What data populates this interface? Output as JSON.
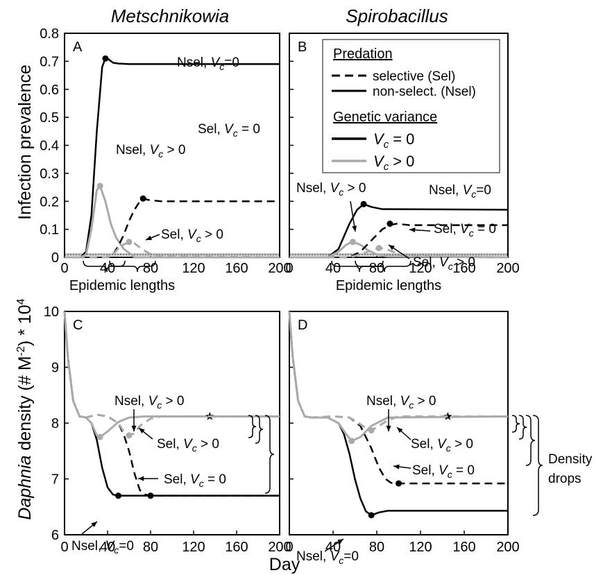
{
  "columns": {
    "left": "Metschnikowia",
    "right": "Spirobacillus"
  },
  "ylabel_top": "Infection prevalence",
  "ylabel_bottom": {
    "italic": "Daphnia",
    "rest": " density (# M",
    "sup1": "-2",
    "mid": ") * 10",
    "sup2": "4"
  },
  "xlabel": "Day",
  "epidemic_label": "Epidemic lengths",
  "density_label": [
    "Density",
    "drops"
  ],
  "legend": {
    "predation_title": "Predation",
    "sel": "selective (Sel)",
    "nsel": "non-select. (Nsel)",
    "variance_title": "Genetic variance",
    "vc0": "= 0",
    "vcpos": "> 0",
    "vc_symbol": "V",
    "vc_sub": "c"
  },
  "colors": {
    "black": "#000000",
    "gray": "#aaaaaa",
    "threshold": "#555555"
  },
  "chart_data": [
    {
      "panel": "A",
      "type": "line",
      "xlim": [
        0,
        200
      ],
      "ylim": [
        0,
        0.8
      ],
      "xticks": [
        0,
        40,
        80,
        120,
        160,
        200
      ],
      "yticks": [
        "0",
        "0.1",
        "0.2",
        "0.3",
        "0.4",
        "0.5",
        "0.6",
        "0.7",
        "0.8"
      ],
      "threshold": 0.01,
      "series": [
        {
          "name": "Nsel, Vc=0",
          "style": "solid",
          "color": "black",
          "x": [
            0,
            15,
            20,
            25,
            30,
            35,
            38,
            40,
            45,
            50,
            60,
            200
          ],
          "y": [
            0,
            0,
            0.02,
            0.15,
            0.45,
            0.68,
            0.71,
            0.71,
            0.695,
            0.692,
            0.69,
            0.69
          ],
          "marker": [
            38,
            0.71
          ]
        },
        {
          "name": "Nsel, Vc > 0",
          "style": "solid",
          "color": "gray",
          "x": [
            0,
            15,
            20,
            25,
            30,
            33,
            38,
            43,
            48,
            55,
            62,
            65,
            200
          ],
          "y": [
            0,
            0,
            0.01,
            0.1,
            0.24,
            0.255,
            0.2,
            0.12,
            0.07,
            0.03,
            0.01,
            0,
            0
          ],
          "marker": [
            33,
            0.255
          ]
        },
        {
          "name": "Sel, Vc = 0",
          "style": "dashed",
          "color": "black",
          "x": [
            0,
            40,
            45,
            50,
            55,
            60,
            65,
            70,
            73,
            78,
            90,
            200
          ],
          "y": [
            0,
            0,
            0.01,
            0.04,
            0.08,
            0.13,
            0.17,
            0.2,
            0.21,
            0.205,
            0.2,
            0.2
          ],
          "marker": [
            73,
            0.21
          ]
        },
        {
          "name": "Sel, Vc > 0",
          "style": "dashed",
          "color": "gray",
          "x": [
            0,
            40,
            45,
            52,
            60,
            65,
            70,
            78,
            85,
            200
          ],
          "y": [
            0,
            0,
            0.01,
            0.04,
            0.055,
            0.05,
            0.035,
            0.015,
            0.005,
            0
          ],
          "marker": [
            60,
            0.055
          ]
        }
      ],
      "labels": [
        {
          "id": "a-nsel0",
          "pre": "Nsel, ",
          "post": "=0"
        },
        {
          "id": "a-nselpos",
          "pre": "Nsel, ",
          "post": " > 0"
        },
        {
          "id": "a-sel0",
          "pre": "Sel, ",
          "post": " = 0"
        },
        {
          "id": "a-selpos",
          "pre": "Sel, ",
          "post": " > 0"
        }
      ]
    },
    {
      "panel": "B",
      "type": "line",
      "xlim": [
        0,
        200
      ],
      "ylim": [
        0,
        0.8
      ],
      "xticks": [
        0,
        40,
        80,
        120,
        160,
        200
      ],
      "threshold": 0.01,
      "series": [
        {
          "name": "Nsel, Vc=0",
          "style": "solid",
          "color": "black",
          "x": [
            0,
            35,
            45,
            55,
            62,
            68,
            75,
            85,
            200
          ],
          "y": [
            0,
            0,
            0.03,
            0.12,
            0.17,
            0.19,
            0.18,
            0.172,
            0.17
          ],
          "marker": [
            68,
            0.19
          ]
        },
        {
          "name": "Nsel, Vc > 0",
          "style": "solid",
          "color": "gray",
          "x": [
            0,
            35,
            45,
            52,
            58,
            65,
            72,
            80,
            90,
            200
          ],
          "y": [
            0,
            0,
            0.02,
            0.045,
            0.055,
            0.045,
            0.025,
            0.01,
            0.003,
            0
          ],
          "marker": [
            58,
            0.055
          ]
        },
        {
          "name": "Sel, Vc = 0",
          "style": "dashed",
          "color": "black",
          "x": [
            0,
            55,
            65,
            75,
            85,
            92,
            98,
            110,
            200
          ],
          "y": [
            0,
            0,
            0.02,
            0.06,
            0.1,
            0.115,
            0.12,
            0.115,
            0.115
          ],
          "marker": [
            92,
            0.12
          ]
        },
        {
          "name": "Sel, Vc > 0",
          "style": "dashed",
          "color": "gray",
          "x": [
            0,
            55,
            65,
            75,
            82,
            88,
            95,
            105,
            200
          ],
          "y": [
            0,
            0,
            0.01,
            0.025,
            0.033,
            0.03,
            0.02,
            0.005,
            0
          ],
          "marker": [
            82,
            0.033
          ]
        }
      ],
      "labels": [
        {
          "id": "b-nselpos",
          "pre": "Nsel, ",
          "post": " > 0"
        },
        {
          "id": "b-nsel0",
          "pre": "Nsel, ",
          "post": "=0"
        },
        {
          "id": "b-sel0",
          "pre": "Sel, ",
          "post": " = 0"
        },
        {
          "id": "b-selpos",
          "pre": "Sel, ",
          "post": " > 0"
        }
      ]
    },
    {
      "panel": "C",
      "type": "line",
      "xlim": [
        0,
        200
      ],
      "ylim": [
        6,
        10
      ],
      "xticks": [
        0,
        40,
        80,
        120,
        160,
        200
      ],
      "yticks": [
        "6",
        "7",
        "8",
        "9",
        "10"
      ],
      "series": [
        {
          "name": "Nsel, Vc=0",
          "style": "solid",
          "color": "black",
          "x": [
            0,
            3,
            8,
            14,
            20,
            25,
            30,
            35,
            40,
            45,
            50,
            55,
            200
          ],
          "y": [
            10,
            9.2,
            8.4,
            8.12,
            8.1,
            8.0,
            7.7,
            7.2,
            6.85,
            6.72,
            6.7,
            6.7,
            6.7
          ],
          "marker": [
            50,
            6.7
          ]
        },
        {
          "name": "Nsel, Vc > 0",
          "style": "solid",
          "color": "gray",
          "x": [
            0,
            3,
            8,
            14,
            20,
            25,
            30,
            33,
            40,
            50,
            60,
            75,
            200
          ],
          "y": [
            10,
            9.2,
            8.4,
            8.12,
            8.1,
            8.0,
            7.78,
            7.75,
            7.85,
            8.02,
            8.1,
            8.12,
            8.12
          ],
          "marker": [
            33,
            7.75
          ],
          "star": [
            135,
            8.12
          ]
        },
        {
          "name": "Sel, Vc = 0",
          "style": "dashed",
          "color": "black",
          "x": [
            0,
            3,
            8,
            14,
            20,
            30,
            40,
            50,
            55,
            60,
            65,
            70,
            75,
            80,
            200
          ],
          "y": [
            10,
            9.2,
            8.4,
            8.12,
            8.1,
            8.15,
            8.12,
            8.0,
            7.8,
            7.5,
            7.1,
            6.8,
            6.72,
            6.7,
            6.7
          ],
          "marker": [
            80,
            6.7
          ]
        },
        {
          "name": "Sel, Vc > 0",
          "style": "dashed",
          "color": "gray",
          "x": [
            0,
            3,
            8,
            14,
            20,
            30,
            40,
            50,
            55,
            60,
            65,
            70,
            80,
            90,
            200
          ],
          "y": [
            10,
            9.2,
            8.4,
            8.12,
            8.1,
            8.15,
            8.12,
            8.0,
            7.85,
            7.78,
            7.82,
            7.95,
            8.08,
            8.12,
            8.12
          ],
          "marker": [
            60,
            7.78
          ]
        }
      ],
      "labels": [
        {
          "id": "c-nselpos",
          "pre": "Nsel, ",
          "post": " > 0"
        },
        {
          "id": "c-selpos",
          "pre": "Sel, ",
          "post": " > 0"
        },
        {
          "id": "c-sel0",
          "pre": "Sel, ",
          "post": " = 0"
        },
        {
          "id": "c-nsel0",
          "pre": "Nsel, ",
          "post": "=0"
        }
      ]
    },
    {
      "panel": "D",
      "type": "line",
      "xlim": [
        0,
        200
      ],
      "ylim": [
        6,
        10
      ],
      "xticks": [
        0,
        40,
        80,
        120,
        160,
        200
      ],
      "series": [
        {
          "name": "Nsel, Vc=0",
          "style": "solid",
          "color": "black",
          "x": [
            0,
            3,
            8,
            14,
            20,
            35,
            45,
            50,
            55,
            60,
            65,
            70,
            75,
            82,
            90,
            200
          ],
          "y": [
            10,
            9.2,
            8.4,
            8.12,
            8.1,
            8.1,
            8.0,
            7.8,
            7.45,
            7.0,
            6.65,
            6.42,
            6.35,
            6.4,
            6.43,
            6.43
          ],
          "marker": [
            75,
            6.35
          ]
        },
        {
          "name": "Nsel, Vc > 0",
          "style": "solid",
          "color": "gray",
          "x": [
            0,
            3,
            8,
            14,
            20,
            35,
            45,
            52,
            57,
            65,
            75,
            90,
            200
          ],
          "y": [
            10,
            9.2,
            8.4,
            8.12,
            8.1,
            8.1,
            8.0,
            7.8,
            7.68,
            7.75,
            7.95,
            8.1,
            8.12
          ],
          "marker": [
            57,
            7.68
          ],
          "star": [
            145,
            8.12
          ]
        },
        {
          "name": "Sel, Vc = 0",
          "style": "dashed",
          "color": "black",
          "x": [
            0,
            3,
            8,
            14,
            20,
            40,
            55,
            65,
            75,
            82,
            88,
            93,
            100,
            200
          ],
          "y": [
            10,
            9.2,
            8.4,
            8.12,
            8.1,
            8.12,
            8.1,
            7.95,
            7.55,
            7.2,
            7.0,
            6.93,
            6.92,
            6.92
          ],
          "marker": [
            100,
            6.92
          ]
        },
        {
          "name": "Sel, Vc > 0",
          "style": "dashed",
          "color": "gray",
          "x": [
            0,
            3,
            8,
            14,
            20,
            40,
            55,
            65,
            72,
            75,
            82,
            90,
            100,
            200
          ],
          "y": [
            10,
            9.2,
            8.4,
            8.12,
            8.1,
            8.12,
            8.1,
            7.98,
            7.88,
            7.87,
            7.95,
            8.05,
            8.12,
            8.12
          ],
          "marker": [
            75,
            7.87
          ]
        }
      ],
      "labels": [
        {
          "id": "d-nselpos",
          "pre": "Nsel, ",
          "post": " > 0"
        },
        {
          "id": "d-selpos",
          "pre": "Sel, ",
          "post": " > 0"
        },
        {
          "id": "d-sel0",
          "pre": "Sel, ",
          "post": " = 0"
        },
        {
          "id": "d-nsel0",
          "pre": "Nsel, ",
          "post": "=0"
        }
      ]
    }
  ]
}
